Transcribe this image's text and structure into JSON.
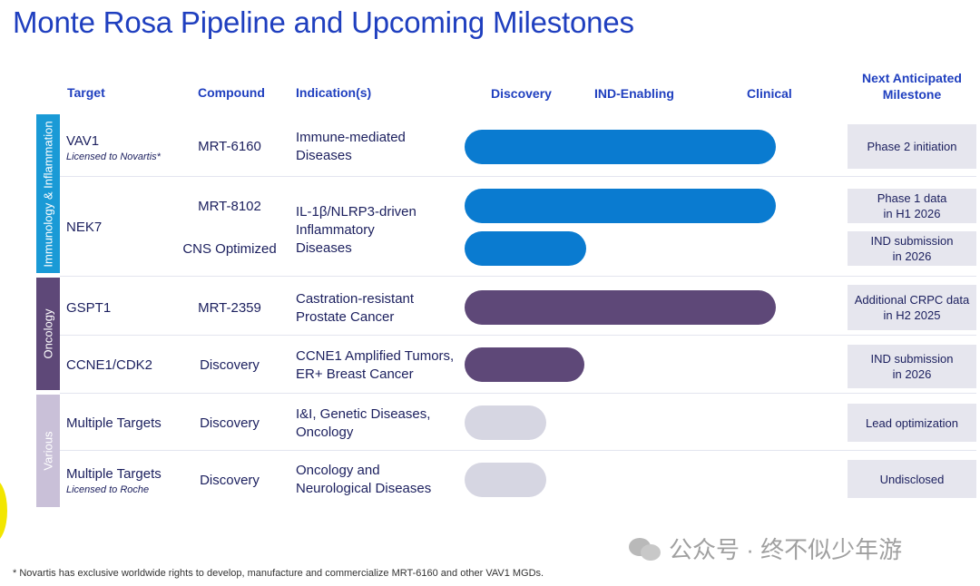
{
  "title": "Monte Rosa Pipeline and Upcoming Milestones",
  "headers": {
    "target": "Target",
    "compound": "Compound",
    "indication": "Indication(s)",
    "discovery": "Discovery",
    "ind_enabling": "IND-Enabling",
    "clinical": "Clinical",
    "milestone": "Next Anticipated Milestone"
  },
  "bands": [
    {
      "label": "Immunology & Inflammation",
      "color": "#1a9ad6"
    },
    {
      "label": "Oncology",
      "color": "#5e4878"
    },
    {
      "label": "Various",
      "color": "#c9c0d8"
    }
  ],
  "colors": {
    "blue_bar": "#0a7bd0",
    "purple_bar": "#5e4878",
    "grey_bar": "#d6d6e2",
    "milestone_bg": "#e6e6ee"
  },
  "rows": {
    "vav1": {
      "target": "VAV1",
      "target_note": "Licensed to Novartis*",
      "compound": "MRT-6160",
      "indication": [
        "Immune-mediated",
        "Diseases"
      ],
      "milestone": [
        "Phase 2 initiation"
      ]
    },
    "nek7": {
      "target": "NEK7",
      "compound_a": "MRT-8102",
      "compound_b": "CNS Optimized",
      "indication": [
        "IL-1β/NLRP3-driven",
        "Inflammatory",
        "Diseases"
      ],
      "milestone_a": [
        "Phase 1 data",
        "in H1 2026"
      ],
      "milestone_b": [
        "IND submission",
        "in 2026"
      ]
    },
    "gspt1": {
      "target": "GSPT1",
      "compound": "MRT-2359",
      "indication": [
        "Castration-resistant",
        "Prostate Cancer"
      ],
      "milestone": [
        "Additional CRPC data",
        "in H2 2025"
      ]
    },
    "ccne1": {
      "target": "CCNE1/CDK2",
      "compound": "Discovery",
      "indication": [
        "CCNE1 Amplified Tumors,",
        "ER+ Breast Cancer"
      ],
      "milestone": [
        "IND submission",
        "in 2026"
      ]
    },
    "multi1": {
      "target": "Multiple Targets",
      "compound": "Discovery",
      "indication": [
        "I&I, Genetic Diseases,",
        "Oncology"
      ],
      "milestone": [
        "Lead optimization"
      ]
    },
    "multi2": {
      "target": "Multiple Targets",
      "target_note": "Licensed to Roche",
      "compound": "Discovery",
      "indication": [
        "Oncology and",
        "Neurological Diseases"
      ],
      "milestone": [
        "Undisclosed"
      ]
    }
  },
  "watermark": "公众号 · 终不似少年游",
  "footnote": "* Novartis has exclusive worldwide rights to develop, manufacture and commercialize MRT-6160 and other VAV1 MGDs."
}
